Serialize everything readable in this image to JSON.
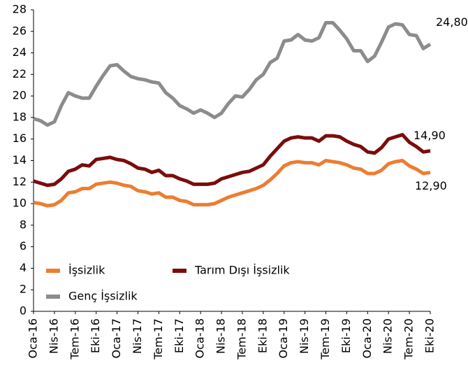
{
  "chart_data": {
    "type": "line",
    "categories": [
      "Oca-16",
      null,
      null,
      "Nis-16",
      null,
      null,
      "Tem-16",
      null,
      null,
      "Eki-16",
      null,
      null,
      "Oca-17",
      null,
      null,
      "Nis-17",
      null,
      null,
      "Tem-17",
      null,
      null,
      "Eki-17",
      null,
      null,
      "Oca-18",
      null,
      null,
      "Nis-18",
      null,
      null,
      "Tem-18",
      null,
      null,
      "Eki-18",
      null,
      null,
      "Oca-19",
      null,
      null,
      "Nis-19",
      null,
      null,
      "Tem-19",
      null,
      null,
      "Eki-19",
      null,
      null,
      "Oca-20",
      null,
      null,
      "Nis-20",
      null,
      null,
      "Tem-20",
      null,
      null,
      "Eki-20"
    ],
    "series": [
      {
        "name": "İşsizlik",
        "color": "#ed7d31",
        "values": [
          10.1,
          10.0,
          9.8,
          9.9,
          10.3,
          11.0,
          11.1,
          11.4,
          11.4,
          11.8,
          11.9,
          12.0,
          11.9,
          11.7,
          11.6,
          11.2,
          11.1,
          10.9,
          11.0,
          10.6,
          10.6,
          10.3,
          10.2,
          9.9,
          9.9,
          9.9,
          10.0,
          10.3,
          10.6,
          10.8,
          11.0,
          11.2,
          11.4,
          11.7,
          12.2,
          12.8,
          13.5,
          13.8,
          13.9,
          13.8,
          13.8,
          13.6,
          14.0,
          13.9,
          13.8,
          13.6,
          13.3,
          13.2,
          12.8,
          12.8,
          13.1,
          13.7,
          13.9,
          14.0,
          13.5,
          13.2,
          12.8,
          12.9
        ],
        "value_labels": [
          null,
          null,
          null,
          null,
          null,
          null,
          null,
          null,
          null,
          null,
          null,
          null,
          null,
          null,
          null,
          null,
          null,
          null,
          null,
          null,
          null,
          null,
          null,
          null,
          null,
          null,
          null,
          null,
          null,
          null,
          null,
          null,
          null,
          null,
          null,
          null,
          null,
          null,
          null,
          null,
          null,
          null,
          null,
          null,
          null,
          null,
          null,
          null,
          null,
          null,
          null,
          null,
          null,
          null,
          null,
          null,
          null,
          "12,90"
        ]
      },
      {
        "name": "Tarım Dışı İşsizlik",
        "color": "#7b0c0c",
        "values": [
          12.1,
          11.9,
          11.7,
          11.8,
          12.3,
          13.0,
          13.2,
          13.6,
          13.5,
          14.1,
          14.2,
          14.3,
          14.1,
          14.0,
          13.7,
          13.3,
          13.2,
          12.9,
          13.1,
          12.6,
          12.6,
          12.3,
          12.1,
          11.8,
          11.8,
          11.8,
          11.9,
          12.3,
          12.5,
          12.7,
          12.9,
          13.0,
          13.3,
          13.6,
          14.4,
          15.1,
          15.8,
          16.1,
          16.2,
          16.1,
          16.1,
          15.8,
          16.3,
          16.3,
          16.2,
          15.8,
          15.5,
          15.3,
          14.8,
          14.7,
          15.2,
          16.0,
          16.2,
          16.4,
          15.7,
          15.3,
          14.8,
          14.9
        ],
        "value_labels": [
          null,
          null,
          null,
          null,
          null,
          null,
          null,
          null,
          null,
          null,
          null,
          null,
          null,
          null,
          null,
          null,
          null,
          null,
          null,
          null,
          null,
          null,
          null,
          null,
          null,
          null,
          null,
          null,
          null,
          null,
          null,
          null,
          null,
          null,
          null,
          null,
          null,
          null,
          null,
          null,
          null,
          null,
          null,
          null,
          null,
          null,
          null,
          null,
          null,
          null,
          null,
          null,
          null,
          null,
          null,
          null,
          null,
          "14,90"
        ]
      },
      {
        "name": "Genç İşsizlik",
        "color": "#8c8c8c",
        "values": [
          17.9,
          17.7,
          17.3,
          17.6,
          19.1,
          20.3,
          20.0,
          19.8,
          19.8,
          20.9,
          21.9,
          22.8,
          22.9,
          22.3,
          21.8,
          21.6,
          21.5,
          21.3,
          21.2,
          20.3,
          19.8,
          19.1,
          18.8,
          18.4,
          18.7,
          18.4,
          18.0,
          18.4,
          19.3,
          20.0,
          19.9,
          20.6,
          21.5,
          22.0,
          23.1,
          23.5,
          25.1,
          25.2,
          25.7,
          25.2,
          25.1,
          25.4,
          26.8,
          26.8,
          26.1,
          25.3,
          24.2,
          24.2,
          23.2,
          23.7,
          25.0,
          26.4,
          26.7,
          26.6,
          25.7,
          25.6,
          24.4,
          24.8
        ],
        "value_labels": [
          null,
          null,
          null,
          null,
          null,
          null,
          null,
          null,
          null,
          null,
          null,
          null,
          null,
          null,
          null,
          null,
          null,
          null,
          null,
          null,
          null,
          null,
          null,
          null,
          null,
          null,
          null,
          null,
          null,
          null,
          null,
          null,
          null,
          null,
          null,
          null,
          null,
          null,
          null,
          null,
          null,
          null,
          null,
          null,
          null,
          null,
          null,
          null,
          null,
          null,
          null,
          null,
          null,
          null,
          null,
          null,
          null,
          "24,80"
        ]
      }
    ],
    "ylim": [
      0,
      28
    ],
    "yticks": [
      0,
      2,
      4,
      6,
      8,
      10,
      12,
      14,
      16,
      18,
      20,
      22,
      24,
      26,
      28
    ],
    "grid": false
  }
}
